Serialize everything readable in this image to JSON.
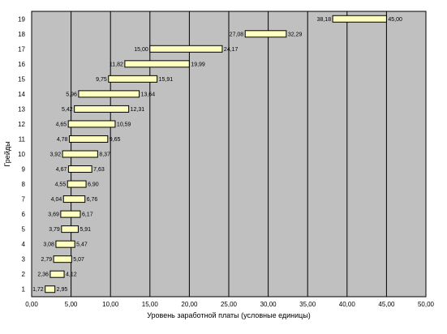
{
  "chart_data": {
    "type": "bar",
    "orientation": "horizontal-range",
    "xlabel": "Уровень заработной платы (условные единицы)",
    "ylabel": "Грейды",
    "xlim": [
      0,
      50
    ],
    "x_tick_labels": [
      "0,00",
      "5,00",
      "10,00",
      "15,00",
      "20,00",
      "25,00",
      "30,00",
      "35,00",
      "40,00",
      "45,00",
      "50,00"
    ],
    "x_tick_values": [
      0,
      5,
      10,
      15,
      20,
      25,
      30,
      35,
      40,
      45,
      50
    ],
    "categories": [
      "1",
      "2",
      "3",
      "4",
      "5",
      "6",
      "7",
      "8",
      "9",
      "10",
      "11",
      "12",
      "13",
      "14",
      "15",
      "16",
      "17",
      "18",
      "19"
    ],
    "min_values": [
      1.72,
      2.36,
      2.79,
      3.08,
      3.79,
      3.69,
      4.04,
      4.55,
      4.67,
      3.92,
      4.78,
      4.65,
      5.42,
      5.96,
      9.75,
      11.82,
      15.0,
      27.08,
      38.18
    ],
    "max_values": [
      2.95,
      4.12,
      5.07,
      5.47,
      5.91,
      6.17,
      6.76,
      6.9,
      7.63,
      8.37,
      9.65,
      10.59,
      12.31,
      13.64,
      15.91,
      19.99,
      24.17,
      32.29,
      45.0
    ],
    "min_labels": [
      "1,72",
      "2,36",
      "2,79",
      "3,08",
      "3,79",
      "3,69",
      "4,04",
      "4,55",
      "4,67",
      "3,92",
      "4,78",
      "4,65",
      "5,42",
      "5,96",
      "9,75",
      "11,82",
      "15,00",
      "27,08",
      "38,18"
    ],
    "max_labels": [
      "2,95",
      "4,12",
      "5,07",
      "5,47",
      "5,91",
      "6,17",
      "6,76",
      "6,90",
      "7,63",
      "8,37",
      "9,65",
      "10,59",
      "12,31",
      "13,64",
      "15,91",
      "19,99",
      "24,17",
      "32,29",
      "45,00"
    ],
    "grid": true,
    "legend": "none",
    "colors": {
      "plot_background": "#c0c0c0",
      "bar_fill": "#ffffc0",
      "bar_stroke": "#000000",
      "grid_line": "#000000"
    }
  }
}
